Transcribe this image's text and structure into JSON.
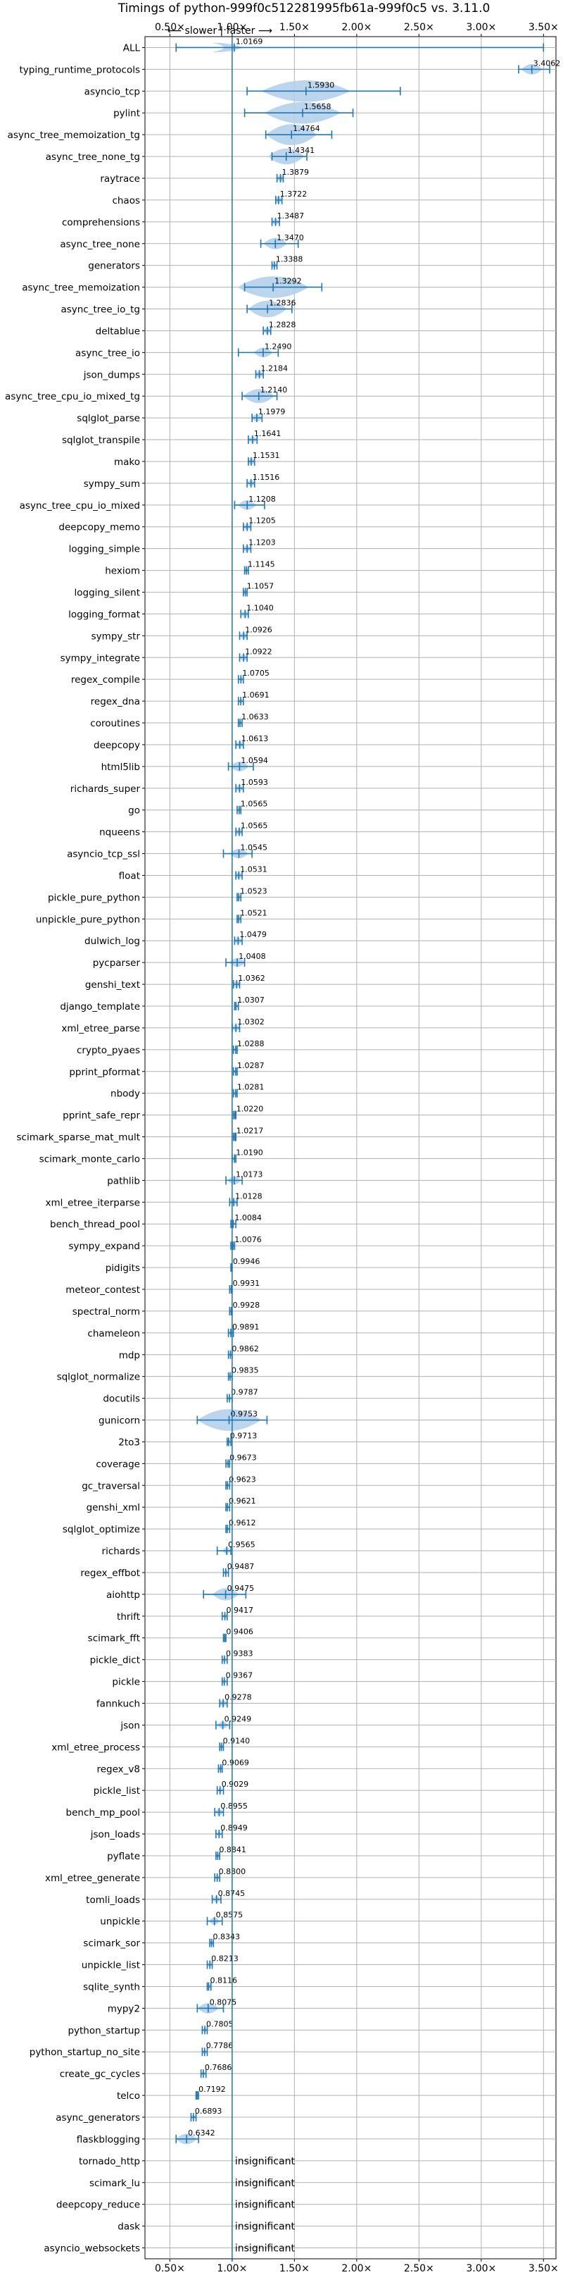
{
  "chart_data": {
    "type": "violin",
    "title": "Timings of python-999f0c512281995fb61a-999f0c5 vs. 3.11.0",
    "annotation": "⟵ slower | faster ⟶",
    "xlim": [
      0.3,
      3.6
    ],
    "xticks": [
      {
        "value": 0.5,
        "label": "0.50×"
      },
      {
        "value": 1.0,
        "label": "1.00×"
      },
      {
        "value": 1.5,
        "label": "1.50×"
      },
      {
        "value": 2.0,
        "label": "2.00×"
      },
      {
        "value": 2.5,
        "label": "2.50×"
      },
      {
        "value": 3.0,
        "label": "3.00×"
      },
      {
        "value": 3.5,
        "label": "3.50×"
      }
    ],
    "reference_line": 1.0,
    "grid": true,
    "colors": {
      "violin": "#b3d1ea",
      "marker": "#1f77b4",
      "reference": "#1f77b4",
      "grid": "#b0b0b0"
    },
    "categories": [
      {
        "name": "ALL",
        "value": "1.0169",
        "mean": 1.0169,
        "min": 0.55,
        "max": 3.5,
        "spread": 0.07,
        "center": 0.85
      },
      {
        "name": "typing_runtime_protocols",
        "value": "3.4062",
        "mean": 3.4062,
        "min": 3.3,
        "max": 3.55,
        "spread": 0.08
      },
      {
        "name": "asyncio_tcp",
        "value": "1.5930",
        "mean": 1.593,
        "min": 1.12,
        "max": 2.35,
        "spread": 0.35
      },
      {
        "name": "pylint",
        "value": "1.5658",
        "mean": 1.5658,
        "min": 1.1,
        "max": 1.97,
        "spread": 0.3
      },
      {
        "name": "async_tree_memoization_tg",
        "value": "1.4764",
        "mean": 1.4764,
        "min": 1.27,
        "max": 1.8,
        "spread": 0.2
      },
      {
        "name": "async_tree_none_tg",
        "value": "1.4341",
        "mean": 1.4341,
        "min": 1.32,
        "max": 1.6,
        "spread": 0.14
      },
      {
        "name": "raytrace",
        "value": "1.3879",
        "mean": 1.3879,
        "min": 1.36,
        "max": 1.41,
        "spread": 0.03
      },
      {
        "name": "chaos",
        "value": "1.3722",
        "mean": 1.3722,
        "min": 1.35,
        "max": 1.4,
        "spread": 0.03
      },
      {
        "name": "comprehensions",
        "value": "1.3487",
        "mean": 1.3487,
        "min": 1.32,
        "max": 1.38,
        "spread": 0.03
      },
      {
        "name": "async_tree_none",
        "value": "1.3470",
        "mean": 1.347,
        "min": 1.23,
        "max": 1.53,
        "spread": 0.09
      },
      {
        "name": "generators",
        "value": "1.3388",
        "mean": 1.3388,
        "min": 1.32,
        "max": 1.36,
        "spread": 0.02
      },
      {
        "name": "async_tree_memoization",
        "value": "1.3292",
        "mean": 1.3292,
        "min": 1.1,
        "max": 1.72,
        "spread": 0.28
      },
      {
        "name": "async_tree_io_tg",
        "value": "1.2836",
        "mean": 1.2836,
        "min": 1.12,
        "max": 1.48,
        "spread": 0.15
      },
      {
        "name": "deltablue",
        "value": "1.2828",
        "mean": 1.2828,
        "min": 1.25,
        "max": 1.31,
        "spread": 0.03
      },
      {
        "name": "async_tree_io",
        "value": "1.2490",
        "mean": 1.249,
        "min": 1.05,
        "max": 1.37,
        "spread": 0.07
      },
      {
        "name": "json_dumps",
        "value": "1.2184",
        "mean": 1.2184,
        "min": 1.19,
        "max": 1.25,
        "spread": 0.03
      },
      {
        "name": "async_tree_cpu_io_mixed_tg",
        "value": "1.2140",
        "mean": 1.214,
        "min": 1.08,
        "max": 1.36,
        "spread": 0.12
      },
      {
        "name": "sqlglot_parse",
        "value": "1.1979",
        "mean": 1.1979,
        "min": 1.16,
        "max": 1.24,
        "spread": 0.04
      },
      {
        "name": "sqlglot_transpile",
        "value": "1.1641",
        "mean": 1.1641,
        "min": 1.13,
        "max": 1.2,
        "spread": 0.03
      },
      {
        "name": "mako",
        "value": "1.1531",
        "mean": 1.1531,
        "min": 1.13,
        "max": 1.18,
        "spread": 0.03
      },
      {
        "name": "sympy_sum",
        "value": "1.1516",
        "mean": 1.1516,
        "min": 1.12,
        "max": 1.18,
        "spread": 0.03
      },
      {
        "name": "async_tree_cpu_io_mixed",
        "value": "1.1208",
        "mean": 1.1208,
        "min": 1.02,
        "max": 1.26,
        "spread": 0.07
      },
      {
        "name": "deepcopy_memo",
        "value": "1.1205",
        "mean": 1.1205,
        "min": 1.09,
        "max": 1.15,
        "spread": 0.03
      },
      {
        "name": "logging_simple",
        "value": "1.1203",
        "mean": 1.1203,
        "min": 1.09,
        "max": 1.15,
        "spread": 0.03
      },
      {
        "name": "hexiom",
        "value": "1.1145",
        "mean": 1.1145,
        "min": 1.1,
        "max": 1.13,
        "spread": 0.015
      },
      {
        "name": "logging_silent",
        "value": "1.1057",
        "mean": 1.1057,
        "min": 1.09,
        "max": 1.12,
        "spread": 0.015
      },
      {
        "name": "logging_format",
        "value": "1.1040",
        "mean": 1.104,
        "min": 1.07,
        "max": 1.13,
        "spread": 0.03
      },
      {
        "name": "sympy_str",
        "value": "1.0926",
        "mean": 1.0926,
        "min": 1.06,
        "max": 1.12,
        "spread": 0.03
      },
      {
        "name": "sympy_integrate",
        "value": "1.0922",
        "mean": 1.0922,
        "min": 1.06,
        "max": 1.12,
        "spread": 0.03
      },
      {
        "name": "regex_compile",
        "value": "1.0705",
        "mean": 1.0705,
        "min": 1.05,
        "max": 1.09,
        "spread": 0.015
      },
      {
        "name": "regex_dna",
        "value": "1.0691",
        "mean": 1.0691,
        "min": 1.05,
        "max": 1.09,
        "spread": 0.015
      },
      {
        "name": "coroutines",
        "value": "1.0633",
        "mean": 1.0633,
        "min": 1.05,
        "max": 1.08,
        "spread": 0.015
      },
      {
        "name": "deepcopy",
        "value": "1.0613",
        "mean": 1.0613,
        "min": 1.03,
        "max": 1.09,
        "spread": 0.03
      },
      {
        "name": "html5lib",
        "value": "1.0594",
        "mean": 1.0594,
        "min": 0.97,
        "max": 1.17,
        "spread": 0.07
      },
      {
        "name": "richards_super",
        "value": "1.0593",
        "mean": 1.0593,
        "min": 1.03,
        "max": 1.09,
        "spread": 0.03
      },
      {
        "name": "go",
        "value": "1.0565",
        "mean": 1.0565,
        "min": 1.04,
        "max": 1.07,
        "spread": 0.015
      },
      {
        "name": "nqueens",
        "value": "1.0565",
        "mean": 1.0565,
        "min": 1.03,
        "max": 1.08,
        "spread": 0.03
      },
      {
        "name": "asyncio_tcp_ssl",
        "value": "1.0545",
        "mean": 1.0545,
        "min": 0.93,
        "max": 1.16,
        "spread": 0.07
      },
      {
        "name": "float",
        "value": "1.0531",
        "mean": 1.0531,
        "min": 1.03,
        "max": 1.08,
        "spread": 0.03
      },
      {
        "name": "pickle_pure_python",
        "value": "1.0523",
        "mean": 1.0523,
        "min": 1.04,
        "max": 1.07,
        "spread": 0.015
      },
      {
        "name": "unpickle_pure_python",
        "value": "1.0521",
        "mean": 1.0521,
        "min": 1.04,
        "max": 1.07,
        "spread": 0.015
      },
      {
        "name": "dulwich_log",
        "value": "1.0479",
        "mean": 1.0479,
        "min": 1.02,
        "max": 1.08,
        "spread": 0.03
      },
      {
        "name": "pycparser",
        "value": "1.0408",
        "mean": 1.0408,
        "min": 0.95,
        "max": 1.1,
        "spread": 0.06
      },
      {
        "name": "genshi_text",
        "value": "1.0362",
        "mean": 1.0362,
        "min": 1.01,
        "max": 1.06,
        "spread": 0.03
      },
      {
        "name": "django_template",
        "value": "1.0307",
        "mean": 1.0307,
        "min": 1.02,
        "max": 1.05,
        "spread": 0.015
      },
      {
        "name": "xml_etree_parse",
        "value": "1.0302",
        "mean": 1.0302,
        "min": 1.0,
        "max": 1.06,
        "spread": 0.03
      },
      {
        "name": "crypto_pyaes",
        "value": "1.0288",
        "mean": 1.0288,
        "min": 1.01,
        "max": 1.04,
        "spread": 0.015
      },
      {
        "name": "pprint_pformat",
        "value": "1.0287",
        "mean": 1.0287,
        "min": 1.01,
        "max": 1.04,
        "spread": 0.015
      },
      {
        "name": "nbody",
        "value": "1.0281",
        "mean": 1.0281,
        "min": 1.01,
        "max": 1.04,
        "spread": 0.015
      },
      {
        "name": "pprint_safe_repr",
        "value": "1.0220",
        "mean": 1.022,
        "min": 1.01,
        "max": 1.03,
        "spread": 0.015
      },
      {
        "name": "scimark_sparse_mat_mult",
        "value": "1.0217",
        "mean": 1.0217,
        "min": 1.01,
        "max": 1.03,
        "spread": 0.015
      },
      {
        "name": "scimark_monte_carlo",
        "value": "1.0190",
        "mean": 1.019,
        "min": 1.0,
        "max": 1.03,
        "spread": 0.015
      },
      {
        "name": "pathlib",
        "value": "1.0173",
        "mean": 1.0173,
        "min": 0.95,
        "max": 1.08,
        "spread": 0.05
      },
      {
        "name": "xml_etree_iterparse",
        "value": "1.0128",
        "mean": 1.0128,
        "min": 0.98,
        "max": 1.04,
        "spread": 0.03
      },
      {
        "name": "bench_thread_pool",
        "value": "1.0084",
        "mean": 1.0084,
        "min": 0.99,
        "max": 1.03,
        "spread": 0.015
      },
      {
        "name": "sympy_expand",
        "value": "1.0076",
        "mean": 1.0076,
        "min": 0.99,
        "max": 1.02,
        "spread": 0.015
      },
      {
        "name": "pidigits",
        "value": "0.9946",
        "mean": 0.9946,
        "min": 0.99,
        "max": 1.0,
        "spread": 0.01
      },
      {
        "name": "meteor_contest",
        "value": "0.9931",
        "mean": 0.9931,
        "min": 0.98,
        "max": 1.0,
        "spread": 0.01
      },
      {
        "name": "spectral_norm",
        "value": "0.9928",
        "mean": 0.9928,
        "min": 0.98,
        "max": 1.0,
        "spread": 0.01
      },
      {
        "name": "chameleon",
        "value": "0.9891",
        "mean": 0.9891,
        "min": 0.97,
        "max": 1.01,
        "spread": 0.015
      },
      {
        "name": "mdp",
        "value": "0.9862",
        "mean": 0.9862,
        "min": 0.97,
        "max": 1.0,
        "spread": 0.015
      },
      {
        "name": "sqlglot_normalize",
        "value": "0.9835",
        "mean": 0.9835,
        "min": 0.97,
        "max": 1.0,
        "spread": 0.015
      },
      {
        "name": "docutils",
        "value": "0.9787",
        "mean": 0.9787,
        "min": 0.96,
        "max": 1.0,
        "spread": 0.015
      },
      {
        "name": "gunicorn",
        "value": "0.9753",
        "mean": 0.9753,
        "min": 0.72,
        "max": 1.28,
        "spread": 0.25
      },
      {
        "name": "2to3",
        "value": "0.9713",
        "mean": 0.9713,
        "min": 0.96,
        "max": 0.99,
        "spread": 0.015
      },
      {
        "name": "coverage",
        "value": "0.9673",
        "mean": 0.9673,
        "min": 0.95,
        "max": 0.98,
        "spread": 0.015
      },
      {
        "name": "gc_traversal",
        "value": "0.9623",
        "mean": 0.9623,
        "min": 0.95,
        "max": 0.98,
        "spread": 0.015
      },
      {
        "name": "genshi_xml",
        "value": "0.9621",
        "mean": 0.9621,
        "min": 0.95,
        "max": 0.98,
        "spread": 0.015
      },
      {
        "name": "sqlglot_optimize",
        "value": "0.9612",
        "mean": 0.9612,
        "min": 0.95,
        "max": 0.98,
        "spread": 0.015
      },
      {
        "name": "richards",
        "value": "0.9565",
        "mean": 0.9565,
        "min": 0.88,
        "max": 0.99,
        "spread": 0.03
      },
      {
        "name": "regex_effbot",
        "value": "0.9487",
        "mean": 0.9487,
        "min": 0.93,
        "max": 0.97,
        "spread": 0.015
      },
      {
        "name": "aiohttp",
        "value": "0.9475",
        "mean": 0.9475,
        "min": 0.77,
        "max": 1.11,
        "spread": 0.1
      },
      {
        "name": "thrift",
        "value": "0.9417",
        "mean": 0.9417,
        "min": 0.92,
        "max": 0.96,
        "spread": 0.015
      },
      {
        "name": "scimark_fft",
        "value": "0.9406",
        "mean": 0.9406,
        "min": 0.93,
        "max": 0.95,
        "spread": 0.012
      },
      {
        "name": "pickle_dict",
        "value": "0.9383",
        "mean": 0.9383,
        "min": 0.92,
        "max": 0.96,
        "spread": 0.015
      },
      {
        "name": "pickle",
        "value": "0.9367",
        "mean": 0.9367,
        "min": 0.92,
        "max": 0.96,
        "spread": 0.015
      },
      {
        "name": "fannkuch",
        "value": "0.9278",
        "mean": 0.9278,
        "min": 0.9,
        "max": 0.96,
        "spread": 0.03
      },
      {
        "name": "json",
        "value": "0.9249",
        "mean": 0.9249,
        "min": 0.87,
        "max": 0.98,
        "spread": 0.04
      },
      {
        "name": "xml_etree_process",
        "value": "0.9140",
        "mean": 0.914,
        "min": 0.9,
        "max": 0.93,
        "spread": 0.015
      },
      {
        "name": "regex_v8",
        "value": "0.9069",
        "mean": 0.9069,
        "min": 0.89,
        "max": 0.92,
        "spread": 0.015
      },
      {
        "name": "pickle_list",
        "value": "0.9029",
        "mean": 0.9029,
        "min": 0.88,
        "max": 0.93,
        "spread": 0.015
      },
      {
        "name": "bench_mp_pool",
        "value": "0.8955",
        "mean": 0.8955,
        "min": 0.86,
        "max": 0.93,
        "spread": 0.03
      },
      {
        "name": "json_loads",
        "value": "0.8949",
        "mean": 0.8949,
        "min": 0.87,
        "max": 0.92,
        "spread": 0.015
      },
      {
        "name": "pyflate",
        "value": "0.8841",
        "mean": 0.8841,
        "min": 0.87,
        "max": 0.9,
        "spread": 0.015
      },
      {
        "name": "xml_etree_generate",
        "value": "0.8800",
        "mean": 0.88,
        "min": 0.86,
        "max": 0.9,
        "spread": 0.015
      },
      {
        "name": "tomli_loads",
        "value": "0.8745",
        "mean": 0.8745,
        "min": 0.84,
        "max": 0.91,
        "spread": 0.03
      },
      {
        "name": "unpickle",
        "value": "0.8575",
        "mean": 0.8575,
        "min": 0.8,
        "max": 0.92,
        "spread": 0.04
      },
      {
        "name": "scimark_sor",
        "value": "0.8343",
        "mean": 0.8343,
        "min": 0.82,
        "max": 0.85,
        "spread": 0.015
      },
      {
        "name": "unpickle_list",
        "value": "0.8213",
        "mean": 0.8213,
        "min": 0.8,
        "max": 0.84,
        "spread": 0.015
      },
      {
        "name": "sqlite_synth",
        "value": "0.8116",
        "mean": 0.8116,
        "min": 0.8,
        "max": 0.83,
        "spread": 0.015
      },
      {
        "name": "mypy2",
        "value": "0.8075",
        "mean": 0.8075,
        "min": 0.72,
        "max": 0.93,
        "spread": 0.08
      },
      {
        "name": "python_startup",
        "value": "0.7805",
        "mean": 0.7805,
        "min": 0.76,
        "max": 0.8,
        "spread": 0.015
      },
      {
        "name": "python_startup_no_site",
        "value": "0.7786",
        "mean": 0.7786,
        "min": 0.76,
        "max": 0.8,
        "spread": 0.015
      },
      {
        "name": "create_gc_cycles",
        "value": "0.7686",
        "mean": 0.7686,
        "min": 0.75,
        "max": 0.79,
        "spread": 0.015
      },
      {
        "name": "telco",
        "value": "0.7192",
        "mean": 0.7192,
        "min": 0.71,
        "max": 0.73,
        "spread": 0.012
      },
      {
        "name": "async_generators",
        "value": "0.6893",
        "mean": 0.6893,
        "min": 0.67,
        "max": 0.71,
        "spread": 0.015
      },
      {
        "name": "flaskblogging",
        "value": "0.6342",
        "mean": 0.6342,
        "min": 0.55,
        "max": 0.73,
        "spread": 0.08
      },
      {
        "name": "tornado_http",
        "value": "insignificant",
        "insignificant": true
      },
      {
        "name": "scimark_lu",
        "value": "insignificant",
        "insignificant": true
      },
      {
        "name": "deepcopy_reduce",
        "value": "insignificant",
        "insignificant": true
      },
      {
        "name": "dask",
        "value": "insignificant",
        "insignificant": true
      },
      {
        "name": "asyncio_websockets",
        "value": "insignificant",
        "insignificant": true
      }
    ]
  }
}
